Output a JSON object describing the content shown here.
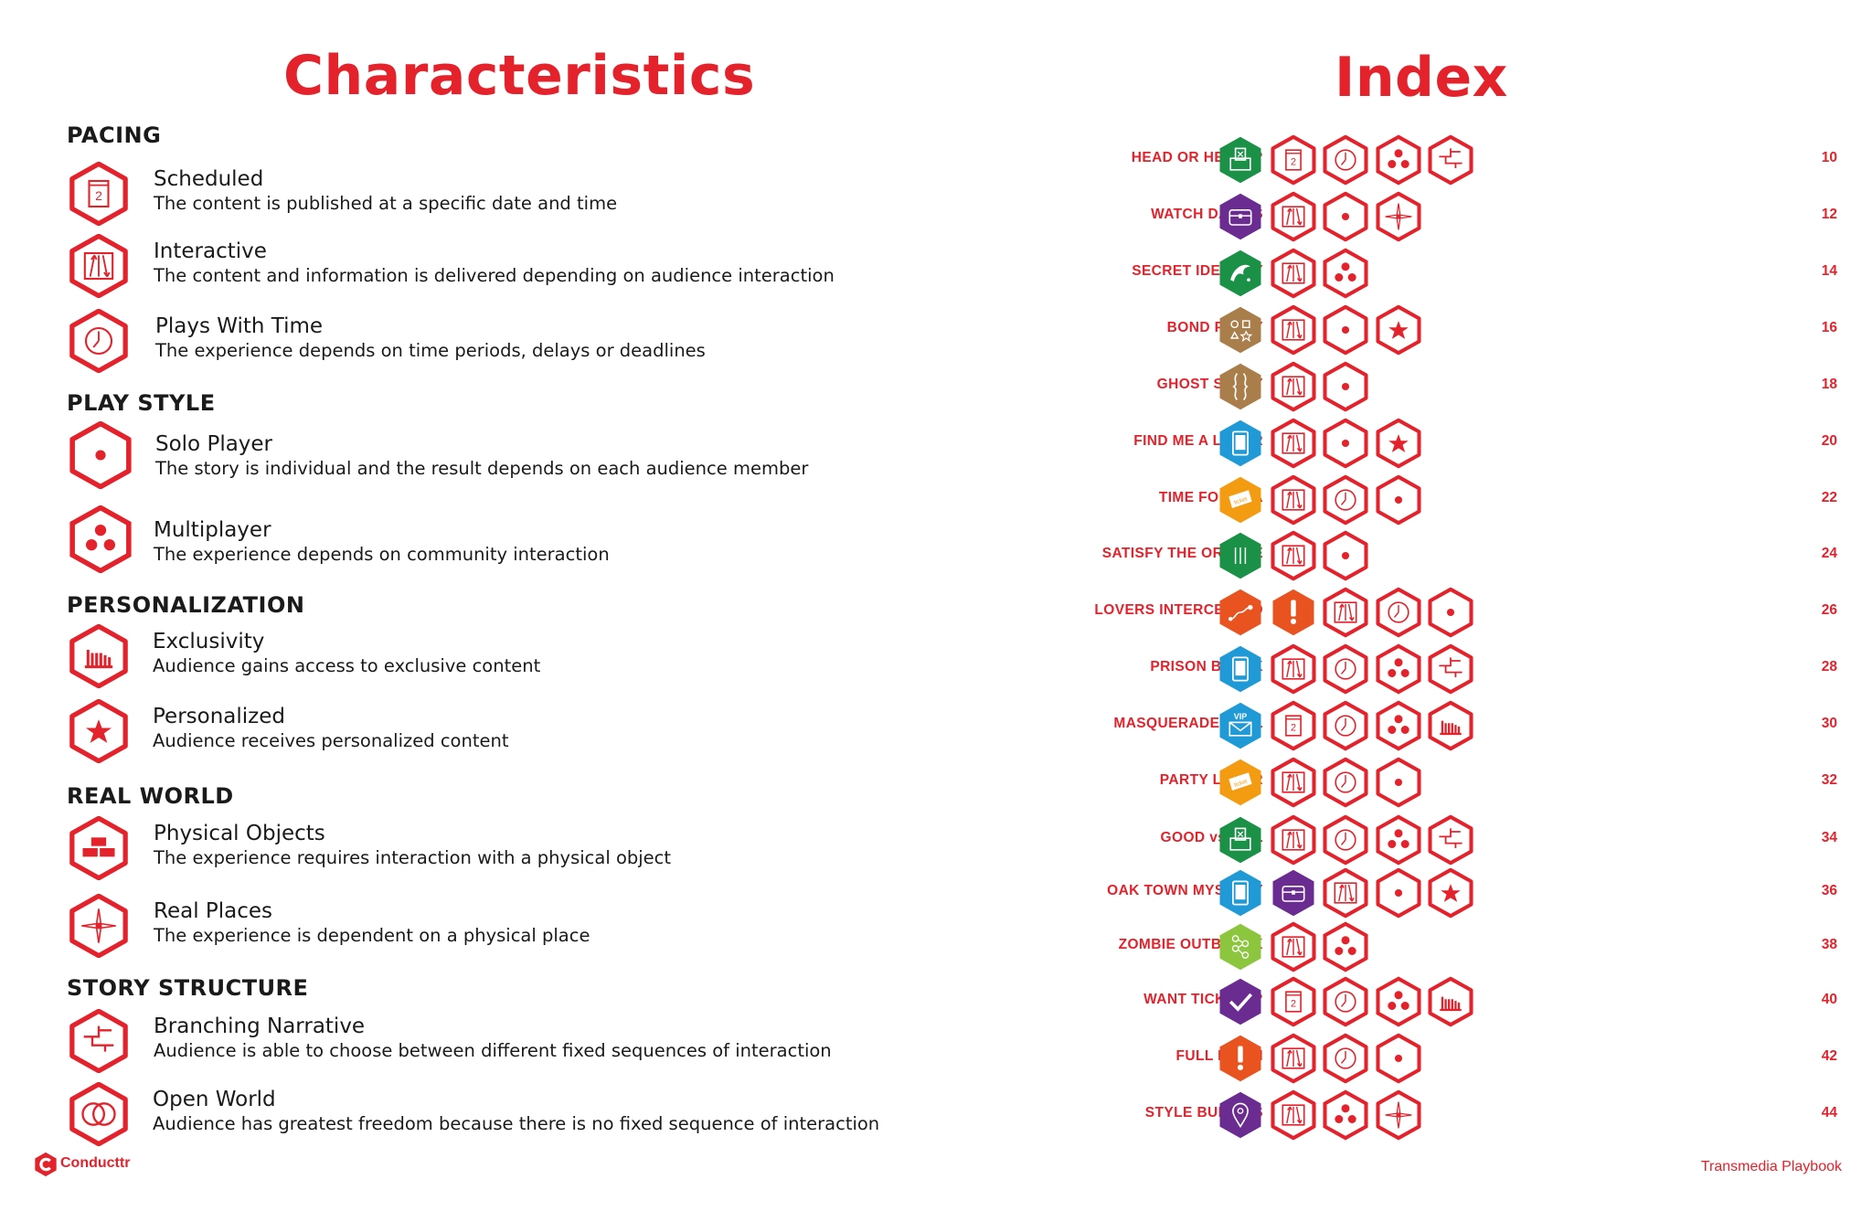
{
  "characteristics": {
    "title": "Characteristics",
    "sections": {
      "pacing": "PACING",
      "play_style": "PLAY STYLE",
      "personalization": "PERSONALIZATION",
      "real_world": "REAL WORLD",
      "story_structure": "STORY STRUCTURE"
    },
    "items": {
      "scheduled": {
        "name": "Scheduled",
        "desc": "The content is published at a specific date and time",
        "icon": "calendar-icon"
      },
      "interactive": {
        "name": "Interactive",
        "desc": "The content and information is delivered depending on audience interaction",
        "icon": "arrows-icon"
      },
      "plays_with_time": {
        "name": "Plays With Time",
        "desc": "The experience depends on time periods, delays or deadlines",
        "icon": "clock-icon"
      },
      "solo_player": {
        "name": "Solo Player",
        "desc": "The story is individual and the result depends on each audience member",
        "icon": "dot-icon"
      },
      "multiplayer": {
        "name": "Multiplayer",
        "desc": "The experience depends on community interaction",
        "icon": "three-dots-icon"
      },
      "exclusivity": {
        "name": "Exclusivity",
        "desc": "Audience gains access to exclusive content",
        "icon": "bars-icon"
      },
      "personalized": {
        "name": "Personalized",
        "desc": "Audience receives personalized content",
        "icon": "star-icon"
      },
      "physical_objects": {
        "name": "Physical Objects",
        "desc": "The experience requires interaction with a physical object",
        "icon": "bricks-icon"
      },
      "real_places": {
        "name": "Real Places",
        "desc": "The experience is dependent on a physical place",
        "icon": "compass-icon"
      },
      "branching_narrative": {
        "name": "Branching Narrative",
        "desc": "Audience is able to choose between different fixed sequences of interaction",
        "icon": "branch-icon"
      },
      "open_world": {
        "name": "Open World",
        "desc": "Audience has greatest freedom because there is no fixed sequence of interaction",
        "icon": "circles-icon"
      }
    }
  },
  "index": {
    "title": "Index",
    "rows": [
      {
        "name": "HEAD OR HEART?",
        "page": "10",
        "icons": [
          [
            "ballot",
            "#1a9146"
          ],
          [
            "calendar"
          ],
          [
            "clock"
          ],
          [
            "three"
          ],
          [
            "branch"
          ]
        ]
      },
      {
        "name": "WATCH DAWGS",
        "page": "12",
        "icons": [
          [
            "chest",
            "#6a2c91"
          ],
          [
            "arrows"
          ],
          [
            "dot"
          ],
          [
            "compass"
          ]
        ]
      },
      {
        "name": "SECRET IDENTITY",
        "page": "14",
        "icons": [
          [
            "dolphin",
            "#1a9146"
          ],
          [
            "arrows"
          ],
          [
            "three"
          ]
        ]
      },
      {
        "name": "BOND PARTY",
        "page": "16",
        "icons": [
          [
            "shapes",
            "#a97e4a"
          ],
          [
            "arrows"
          ],
          [
            "dot"
          ],
          [
            "star"
          ]
        ]
      },
      {
        "name": "GHOST STORY",
        "page": "18",
        "icons": [
          [
            "faces",
            "#a97e4a"
          ],
          [
            "arrows"
          ],
          [
            "dot"
          ]
        ]
      },
      {
        "name": "FIND ME A LOVER",
        "page": "20",
        "icons": [
          [
            "phone",
            "#1f9ad6"
          ],
          [
            "arrows"
          ],
          [
            "dot"
          ],
          [
            "star"
          ]
        ]
      },
      {
        "name": "TIME FOR TEA",
        "page": "22",
        "icons": [
          [
            "ticket",
            "#f39c12"
          ],
          [
            "arrows"
          ],
          [
            "clock"
          ],
          [
            "dot"
          ]
        ]
      },
      {
        "name": "SATISFY THE ORACLE",
        "page": "24",
        "icons": [
          [
            "lines",
            "#1a9146"
          ],
          [
            "arrows"
          ],
          [
            "dot"
          ]
        ]
      },
      {
        "name": "LOVERS INTERCEPTED",
        "page": "26",
        "icons": [
          [
            "path",
            "#e8531f"
          ],
          [
            "alert",
            "#e8531f"
          ],
          [
            "arrows"
          ],
          [
            "clock"
          ],
          [
            "dot"
          ]
        ]
      },
      {
        "name": "PRISON BREAK",
        "page": "28",
        "icons": [
          [
            "phone",
            "#1f9ad6"
          ],
          [
            "arrows"
          ],
          [
            "clock"
          ],
          [
            "three"
          ],
          [
            "branch"
          ]
        ]
      },
      {
        "name": "MASQUERADE BALL",
        "page": "30",
        "icons": [
          [
            "vip",
            "#1f9ad6"
          ],
          [
            "calendar"
          ],
          [
            "clock"
          ],
          [
            "three"
          ],
          [
            "bars"
          ]
        ]
      },
      {
        "name": "PARTY LOVER",
        "page": "32",
        "icons": [
          [
            "ticket",
            "#f39c12"
          ],
          [
            "arrows"
          ],
          [
            "clock"
          ],
          [
            "dot"
          ]
        ]
      },
      {
        "name": "GOOD vs EVIL",
        "page": "34",
        "icons": [
          [
            "ballot",
            "#1a9146"
          ],
          [
            "arrows"
          ],
          [
            "clock"
          ],
          [
            "three"
          ],
          [
            "branch"
          ]
        ]
      },
      {
        "name": "OAK TOWN MYSTERY",
        "page": "36",
        "icons": [
          [
            "phone",
            "#1f9ad6"
          ],
          [
            "chest",
            "#6a2c91"
          ],
          [
            "arrows"
          ],
          [
            "dot"
          ],
          [
            "star"
          ]
        ]
      },
      {
        "name": "ZOMBIE OUTBREAK",
        "page": "38",
        "icons": [
          [
            "network",
            "#8cc63f"
          ],
          [
            "arrows"
          ],
          [
            "three"
          ]
        ]
      },
      {
        "name": "WANT TICKETS?",
        "page": "40",
        "icons": [
          [
            "check",
            "#6a2c91"
          ],
          [
            "calendar"
          ],
          [
            "clock"
          ],
          [
            "three"
          ],
          [
            "bars"
          ]
        ]
      },
      {
        "name": "FULL MOON",
        "page": "42",
        "icons": [
          [
            "alert",
            "#e8531f"
          ],
          [
            "arrows"
          ],
          [
            "clock"
          ],
          [
            "dot"
          ]
        ]
      },
      {
        "name": "STYLE BUDDIES",
        "page": "44",
        "icons": [
          [
            "pin",
            "#6a2c91"
          ],
          [
            "arrows"
          ],
          [
            "three"
          ],
          [
            "compass"
          ]
        ]
      }
    ]
  },
  "footer": {
    "logo": "Conducttr",
    "right": "Transmedia Playbook"
  },
  "colors": {
    "accent": "#e4222b"
  }
}
